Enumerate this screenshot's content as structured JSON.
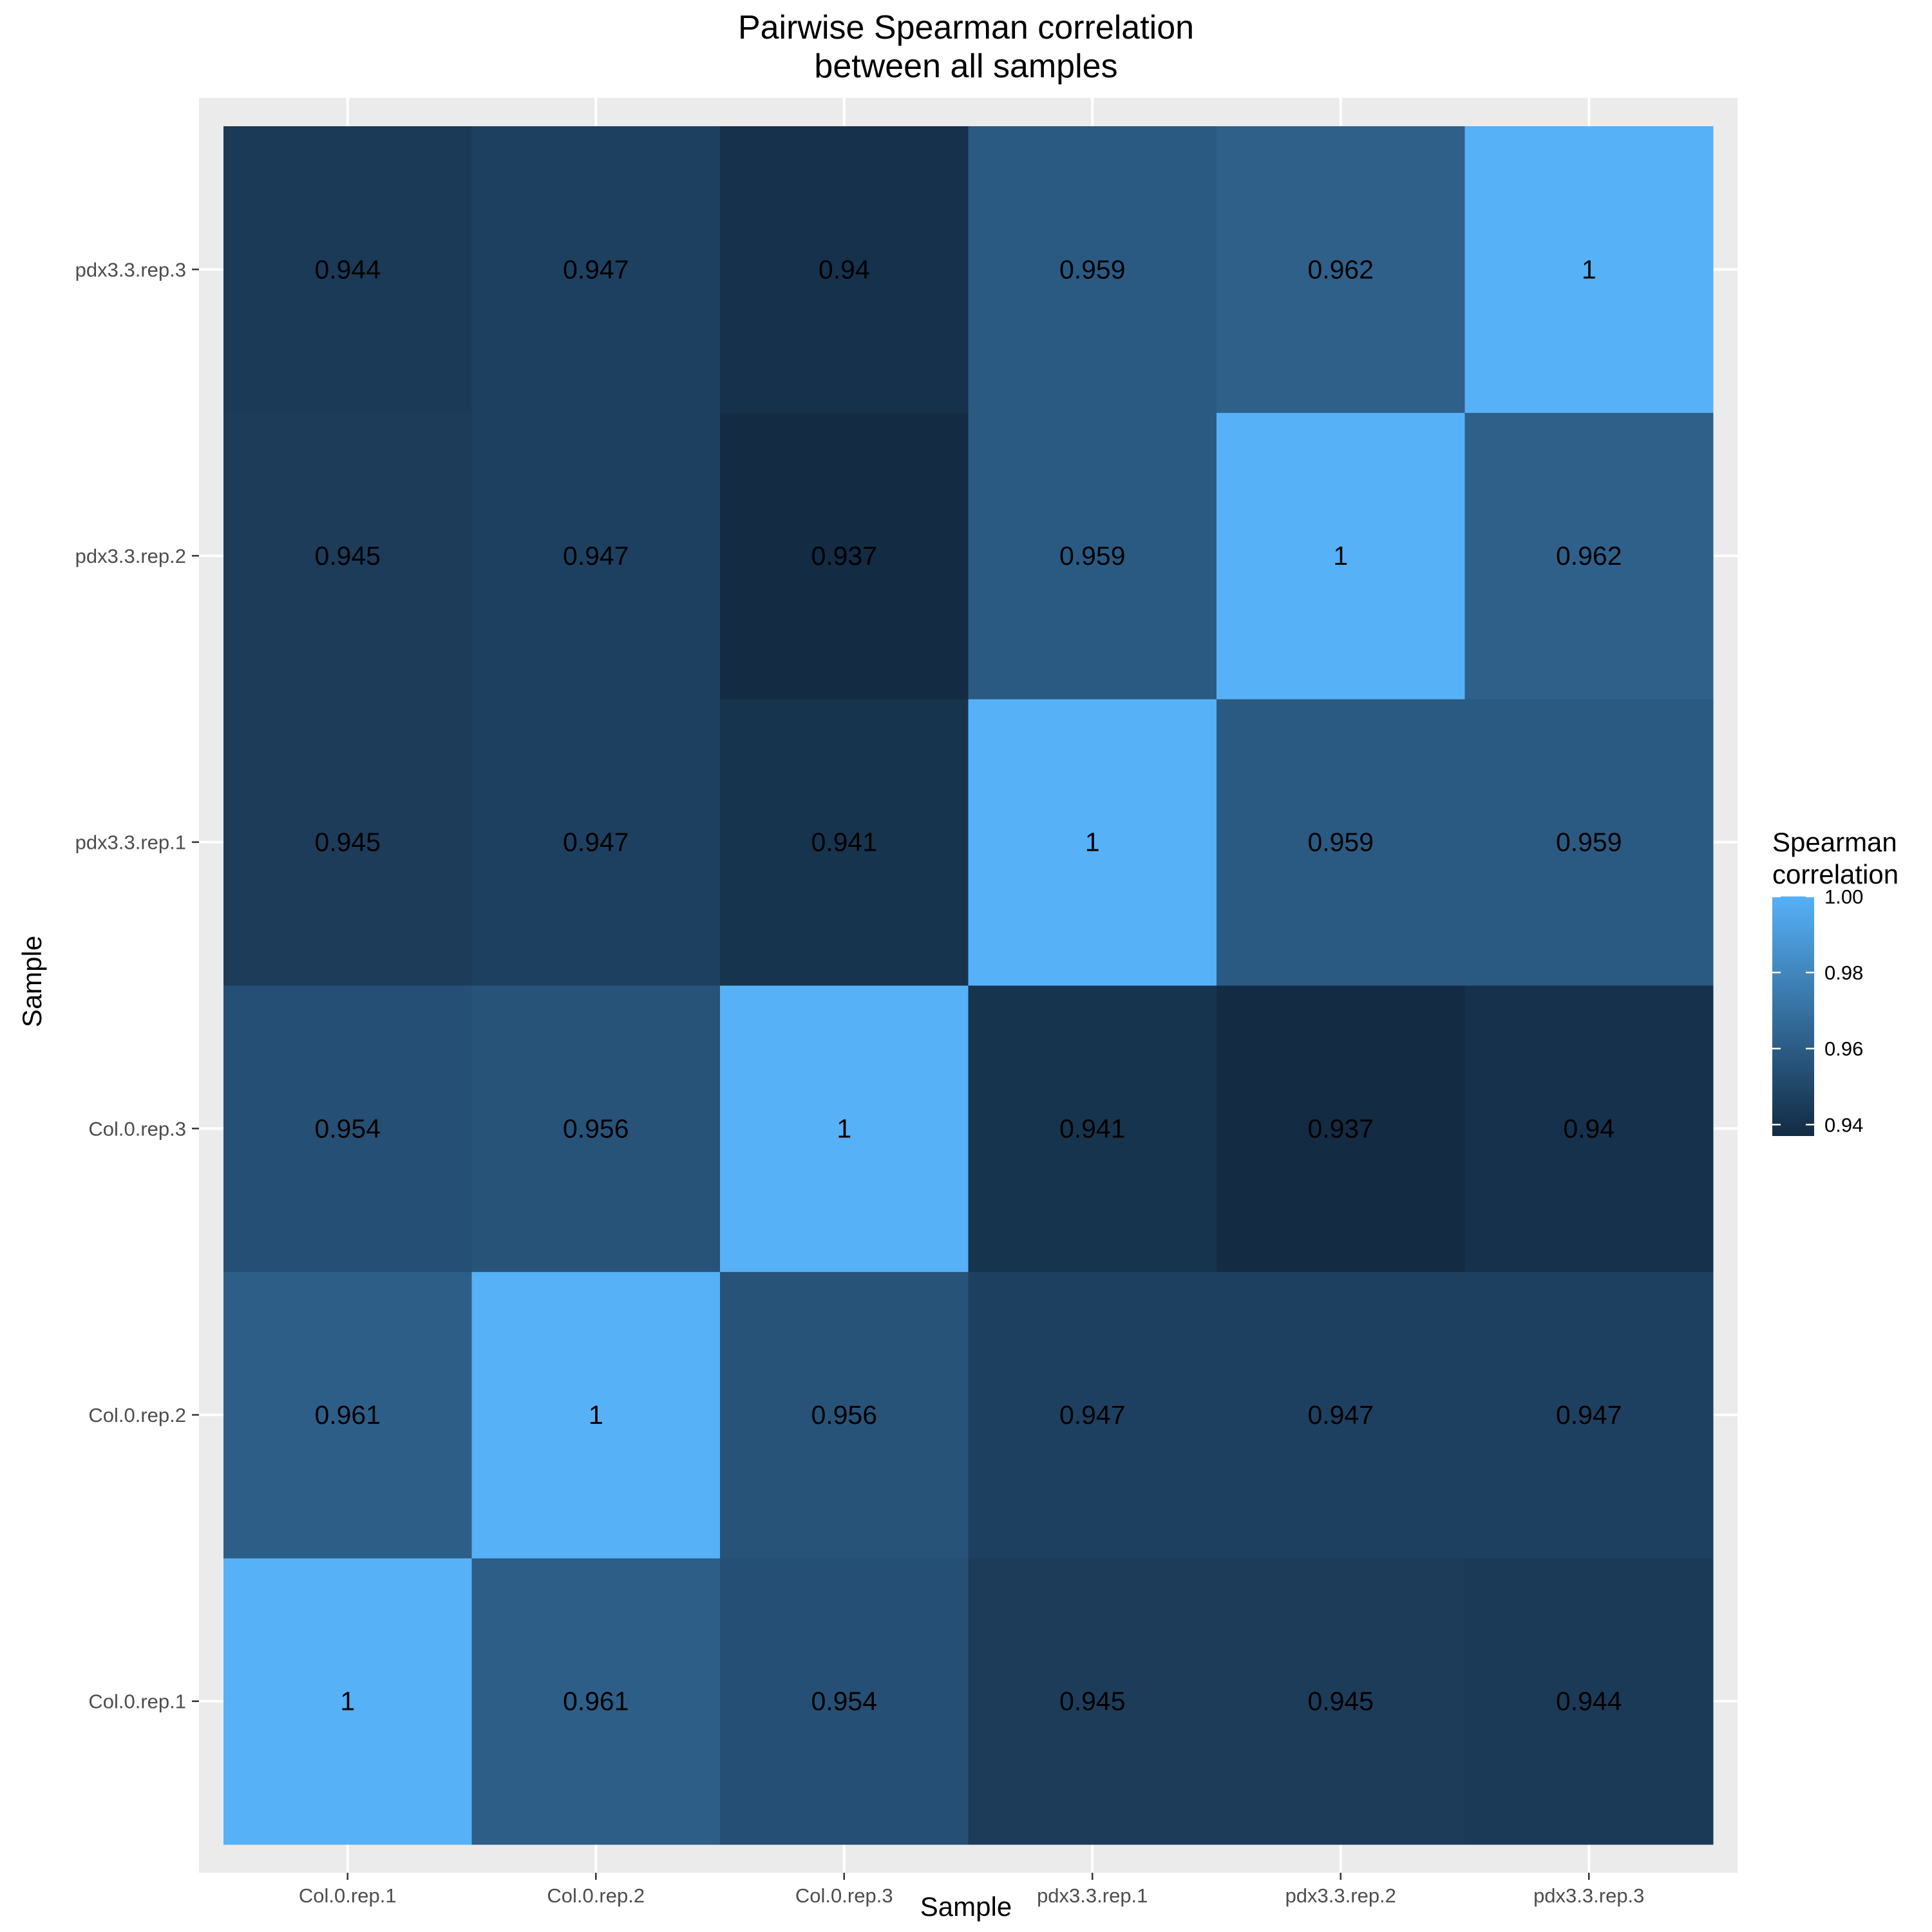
{
  "chart_data": {
    "type": "heatmap",
    "title_lines": [
      "Pairwise Spearman correlation",
      "between all samples"
    ],
    "xlabel": "Sample",
    "ylabel": "Sample",
    "x_categories": [
      "Col.0.rep.1",
      "Col.0.rep.2",
      "Col.0.rep.3",
      "pdx3.3.rep.1",
      "pdx3.3.rep.2",
      "pdx3.3.rep.3"
    ],
    "y_categories": [
      "Col.0.rep.1",
      "Col.0.rep.2",
      "Col.0.rep.3",
      "pdx3.3.rep.1",
      "pdx3.3.rep.2",
      "pdx3.3.rep.3"
    ],
    "values": [
      [
        1,
        0.961,
        0.954,
        0.945,
        0.945,
        0.944
      ],
      [
        0.961,
        1,
        0.956,
        0.947,
        0.947,
        0.947
      ],
      [
        0.954,
        0.956,
        1,
        0.941,
        0.937,
        0.94
      ],
      [
        0.945,
        0.947,
        0.941,
        1,
        0.959,
        0.959
      ],
      [
        0.945,
        0.947,
        0.937,
        0.959,
        1,
        0.962
      ],
      [
        0.944,
        0.947,
        0.94,
        0.959,
        0.962,
        1
      ]
    ],
    "cell_labels": [
      [
        "1",
        "0.961",
        "0.954",
        "0.945",
        "0.945",
        "0.944"
      ],
      [
        "0.961",
        "1",
        "0.956",
        "0.947",
        "0.947",
        "0.947"
      ],
      [
        "0.954",
        "0.956",
        "1",
        "0.941",
        "0.937",
        "0.94"
      ],
      [
        "0.945",
        "0.947",
        "0.941",
        "1",
        "0.959",
        "0.959"
      ],
      [
        "0.945",
        "0.947",
        "0.937",
        "0.959",
        "1",
        "0.962"
      ],
      [
        "0.944",
        "0.947",
        "0.94",
        "0.959",
        "0.962",
        "1"
      ]
    ],
    "legend": {
      "title_lines": [
        "Spearman",
        "correlation"
      ],
      "range": [
        0.937,
        1
      ],
      "ticks": [
        0.94,
        0.96,
        0.98,
        1.0
      ],
      "tick_labels": [
        "0.94",
        "0.96",
        "0.98",
        "1.00"
      ],
      "low_color": "#132B43",
      "high_color": "#56B1F7",
      "placement": "right"
    },
    "panel_background": "#EBEBEB",
    "grid": true
  }
}
